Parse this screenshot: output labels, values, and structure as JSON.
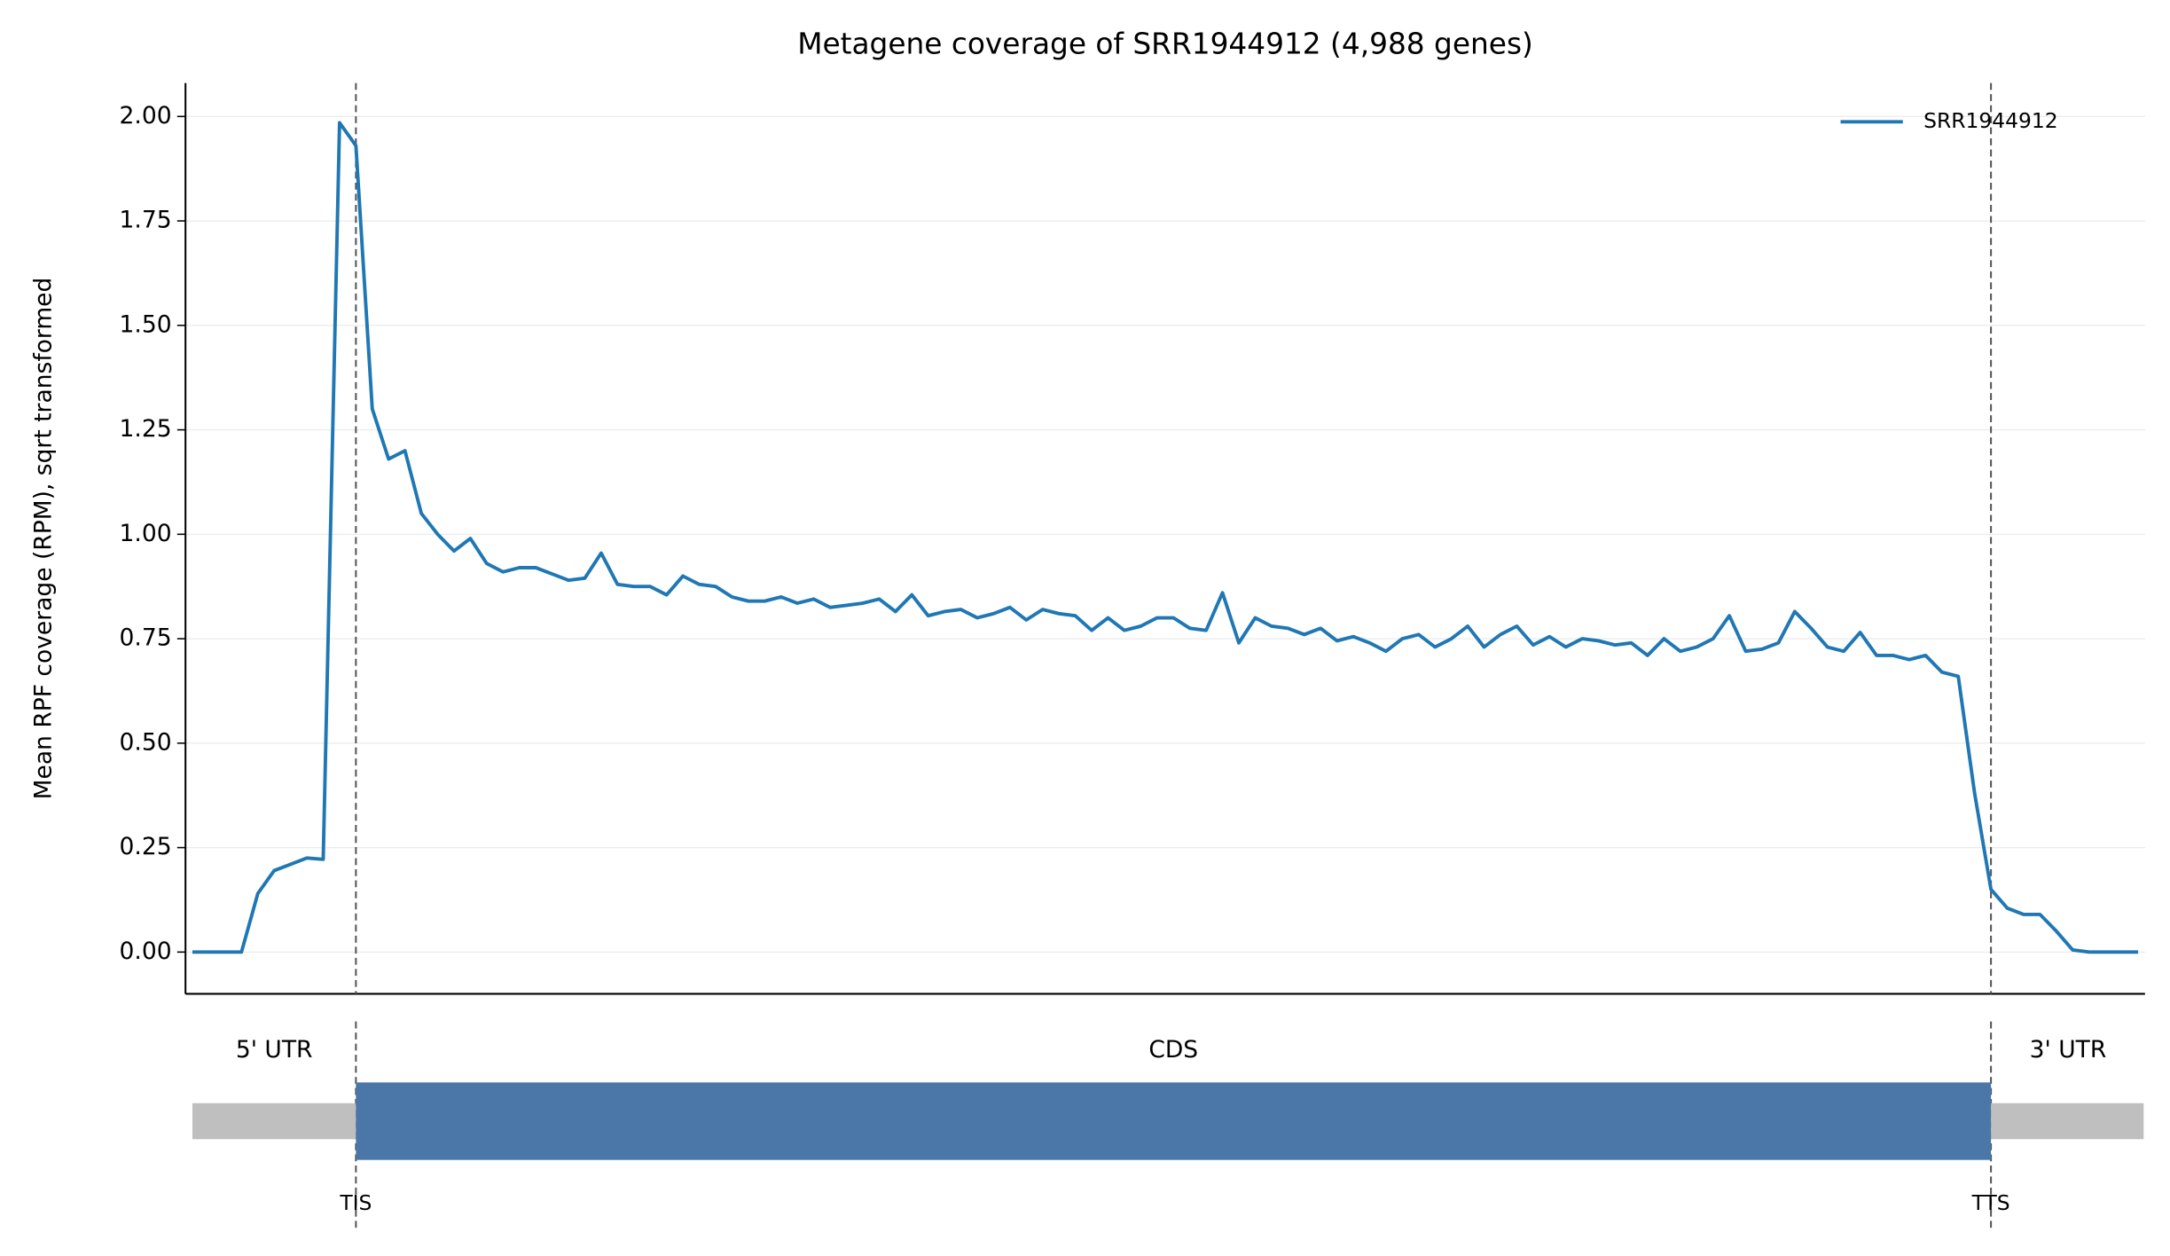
{
  "chart_data": {
    "type": "line",
    "title": "Metagene coverage of SRR1944912 (4,988 genes)",
    "y_label": "Mean RPF coverage (RPM), sqrt transformed",
    "ylim": [
      -0.1,
      2.08
    ],
    "yticks": [
      {
        "value": 0,
        "label": "0.00"
      },
      {
        "value": 0.25,
        "label": "0.25"
      },
      {
        "value": 0.5,
        "label": "0.50"
      },
      {
        "value": 0.75,
        "label": "0.75"
      },
      {
        "value": 1,
        "label": "1.00"
      },
      {
        "value": 1.25,
        "label": "1.25"
      },
      {
        "value": 1.5,
        "label": "1.50"
      },
      {
        "value": 1.75,
        "label": "1.75"
      },
      {
        "value": 2,
        "label": "2.00"
      }
    ],
    "grid": true,
    "legend": "upper right",
    "series": [
      {
        "name": "SRR1944912",
        "color": "#1f77b4",
        "values": [
          0,
          0,
          0,
          0,
          0.14,
          0.195,
          0.21,
          0.225,
          0.222,
          1.985,
          1.93,
          1.3,
          1.18,
          1.2,
          1.05,
          1.0,
          0.96,
          0.99,
          0.93,
          0.91,
          0.92,
          0.92,
          0.905,
          0.89,
          0.895,
          0.955,
          0.88,
          0.875,
          0.875,
          0.855,
          0.9,
          0.88,
          0.875,
          0.85,
          0.84,
          0.84,
          0.85,
          0.835,
          0.845,
          0.825,
          0.83,
          0.835,
          0.845,
          0.815,
          0.855,
          0.805,
          0.815,
          0.82,
          0.8,
          0.81,
          0.825,
          0.795,
          0.82,
          0.81,
          0.805,
          0.77,
          0.8,
          0.77,
          0.78,
          0.8,
          0.8,
          0.775,
          0.77,
          0.86,
          0.74,
          0.8,
          0.78,
          0.775,
          0.76,
          0.775,
          0.745,
          0.755,
          0.74,
          0.72,
          0.75,
          0.76,
          0.73,
          0.75,
          0.78,
          0.73,
          0.76,
          0.78,
          0.735,
          0.755,
          0.73,
          0.75,
          0.745,
          0.735,
          0.74,
          0.71,
          0.75,
          0.72,
          0.73,
          0.75,
          0.805,
          0.72,
          0.725,
          0.74,
          0.815,
          0.775,
          0.73,
          0.72,
          0.765,
          0.71,
          0.71,
          0.7,
          0.71,
          0.67,
          0.66,
          0.38,
          0.15,
          0.105,
          0.09,
          0.09,
          0.05,
          0.005,
          0,
          0,
          0,
          0
        ]
      }
    ],
    "regions": [
      "5' UTR",
      "CDS",
      "3' UTR"
    ],
    "markers": [
      "TIS",
      "TTS"
    ]
  }
}
